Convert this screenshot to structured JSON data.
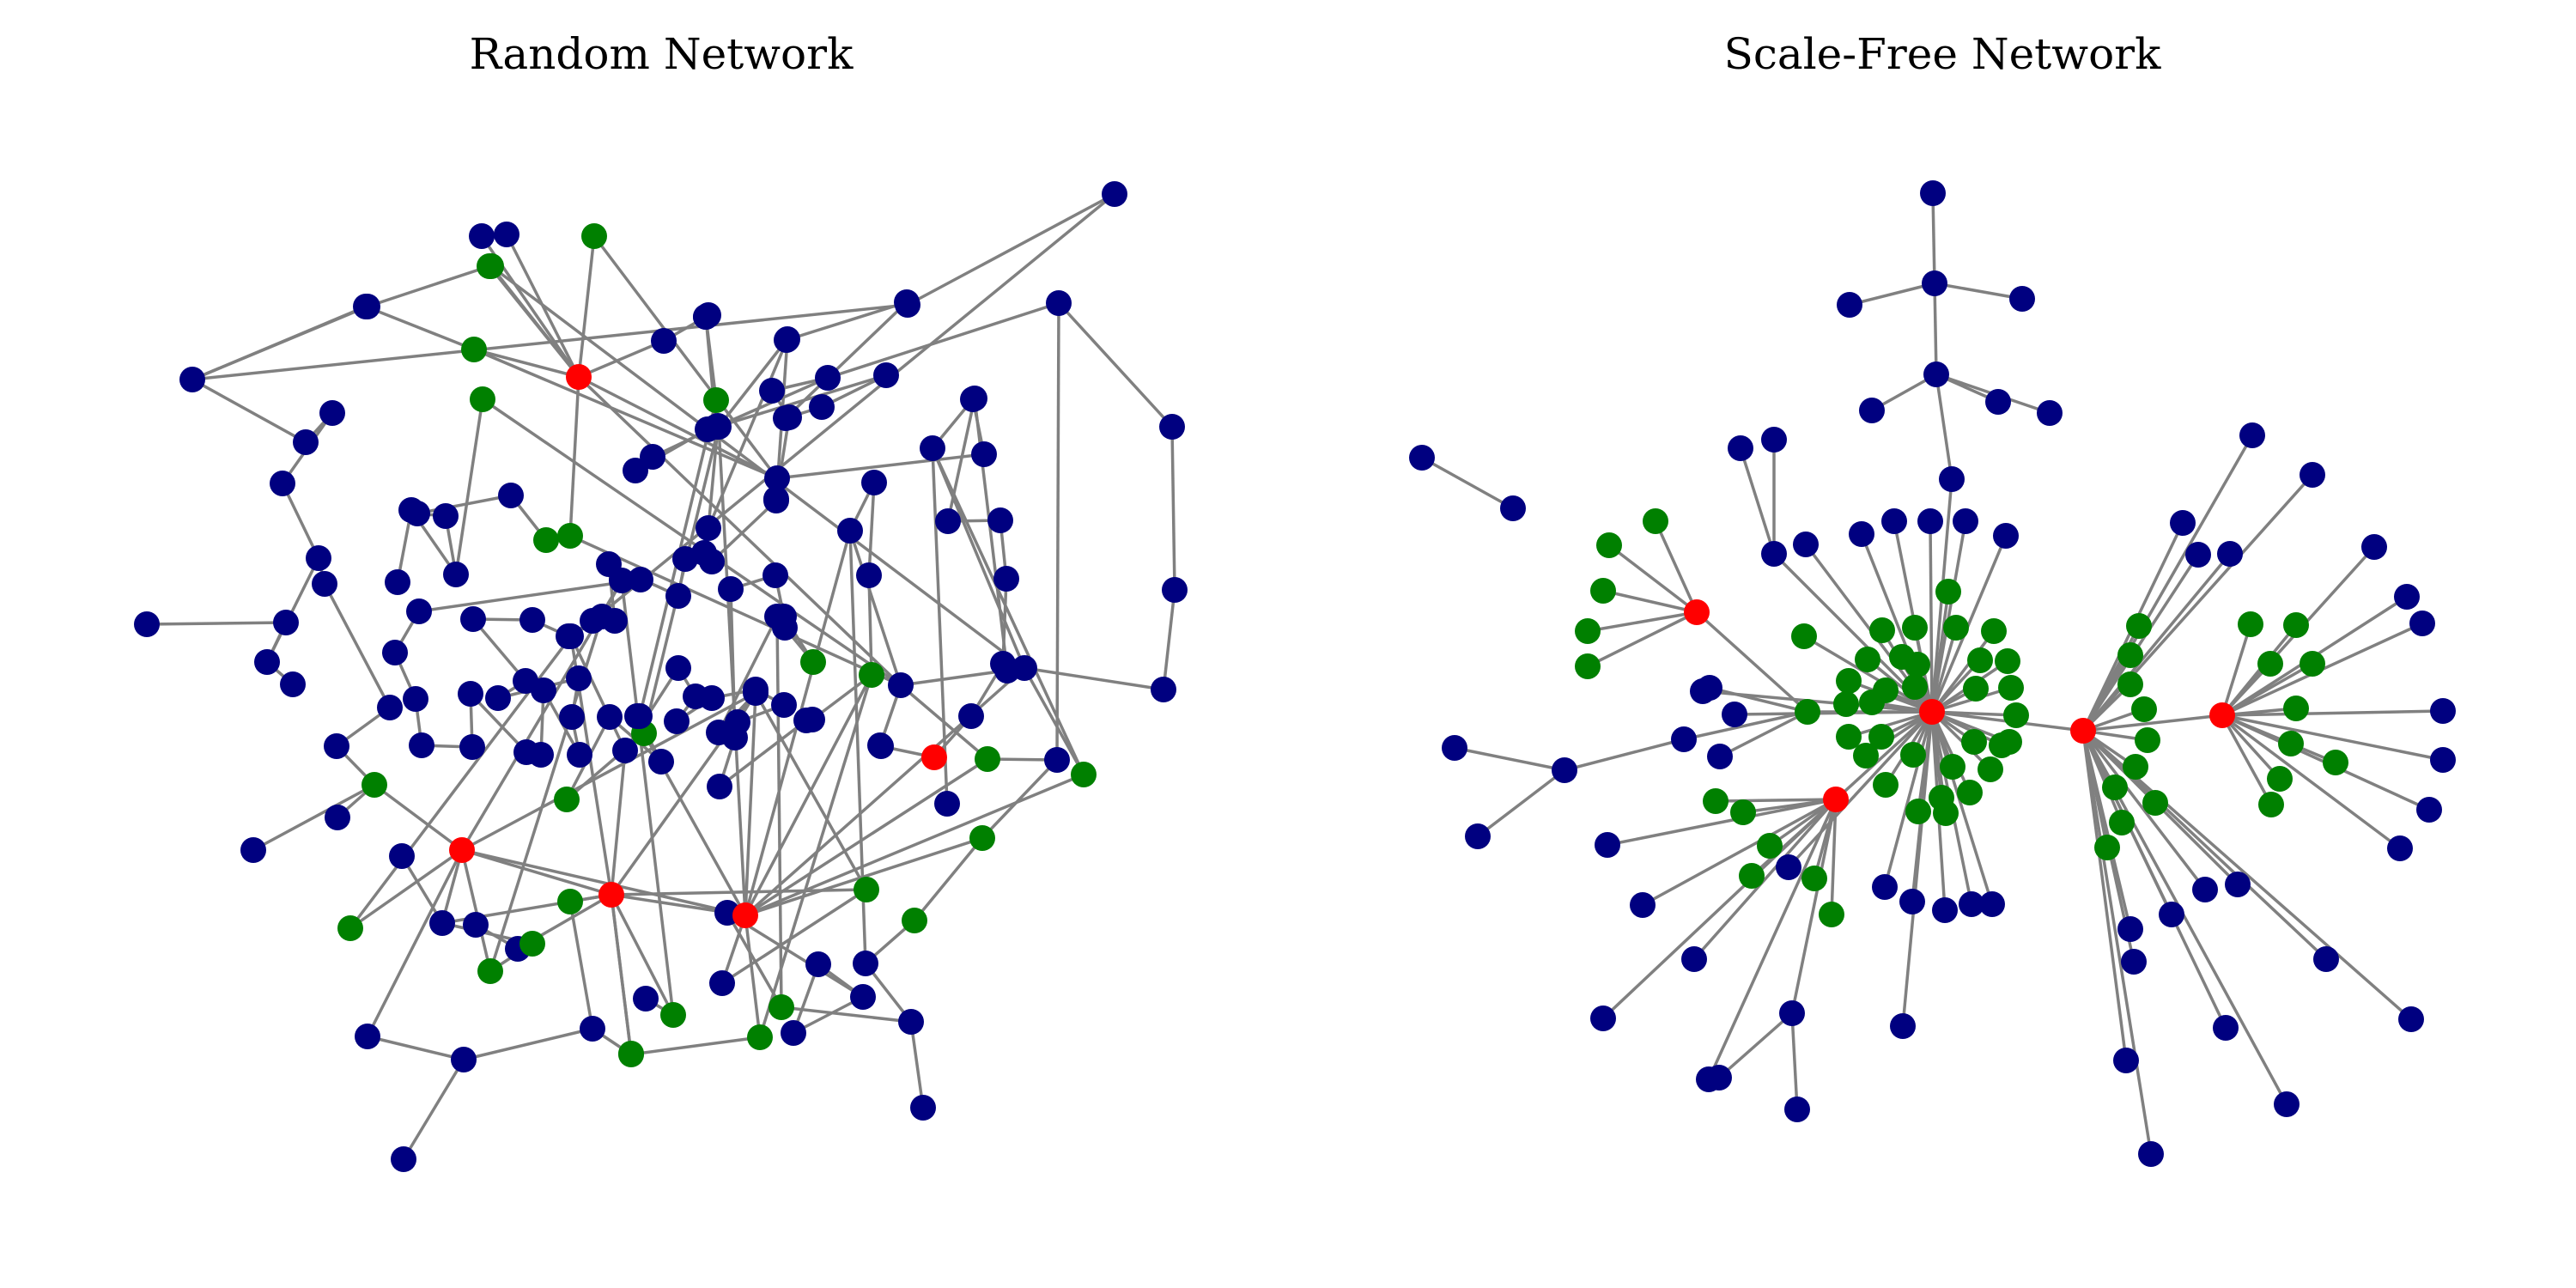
{
  "figure": {
    "colors": {
      "edge": "#808080",
      "hub": "#ff0000",
      "neighbor": "#008000",
      "other": "#000080"
    },
    "panels": [
      {
        "key": "random",
        "title": "Random Network"
      },
      {
        "key": "scalefree",
        "title": "Scale-Free Network"
      }
    ]
  }
}
